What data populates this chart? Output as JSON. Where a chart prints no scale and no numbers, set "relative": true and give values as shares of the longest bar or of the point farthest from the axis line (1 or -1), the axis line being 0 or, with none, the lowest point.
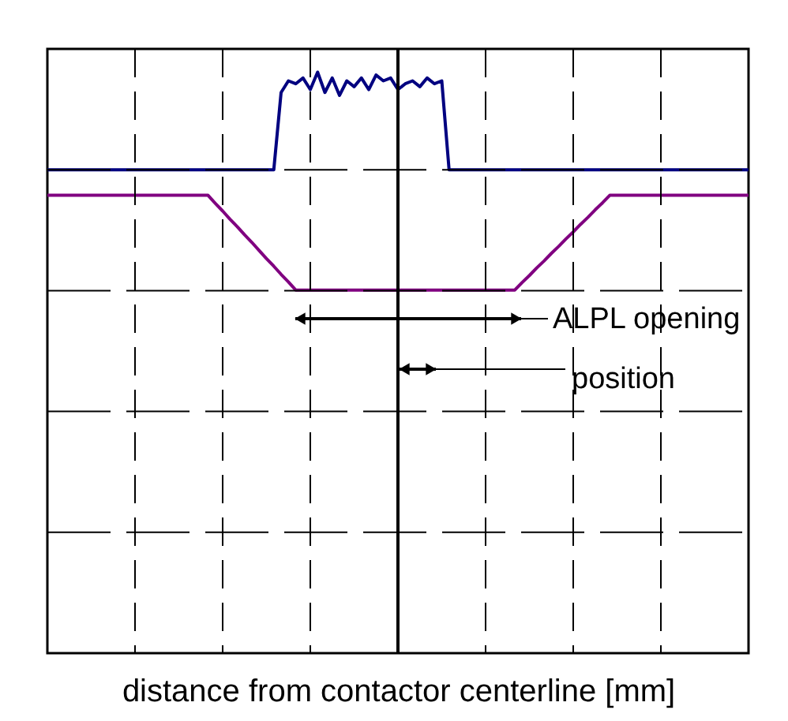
{
  "chart_data": {
    "type": "line",
    "relative": true,
    "xlabel": "distance from contactor centerline [mm]",
    "grid": true,
    "legend": false,
    "marker": "none",
    "line_style": "solid",
    "categories": [
      null,
      null,
      null,
      null,
      null,
      null,
      null,
      null,
      null,
      null,
      null,
      null,
      null,
      null,
      null,
      null,
      null,
      null,
      null,
      null,
      null,
      null,
      null,
      null,
      null,
      null,
      null,
      null,
      null,
      null,
      null,
      null,
      null,
      null,
      null,
      null,
      null,
      null,
      null,
      null,
      null,
      null,
      null,
      null,
      null,
      null,
      null,
      null,
      null,
      null,
      null,
      null,
      null,
      null,
      null,
      null,
      null,
      null,
      null,
      null,
      null,
      null,
      null,
      null,
      null,
      null,
      null,
      null,
      null,
      null,
      null,
      null,
      null,
      null,
      null,
      null,
      null,
      null,
      null,
      null,
      null,
      null,
      null,
      null,
      null,
      null,
      null,
      null,
      null,
      null,
      null,
      null,
      null,
      null,
      null,
      null,
      null
    ],
    "series": [
      {
        "color": "#000080",
        "values": [
          0.832,
          0.832,
          0.832,
          0.832,
          0.832,
          0.832,
          0.832,
          0.832,
          0.832,
          0.832,
          0.832,
          0.832,
          0.832,
          0.832,
          0.832,
          0.832,
          0.832,
          0.832,
          0.832,
          0.832,
          0.832,
          0.832,
          0.832,
          0.832,
          0.832,
          0.832,
          0.832,
          0.832,
          0.832,
          0.832,
          0.832,
          0.832,
          0.965,
          0.985,
          0.98,
          0.99,
          0.97,
          1,
          0.965,
          0.99,
          0.96,
          0.985,
          0.975,
          0.99,
          0.97,
          0.995,
          0.985,
          0.99,
          0.97,
          0.98,
          0.985,
          0.975,
          0.99,
          0.98,
          0.985,
          0.832,
          0.832,
          0.832,
          0.832,
          0.832,
          0.832,
          0.832,
          0.832,
          0.832,
          0.832,
          0.832,
          0.832,
          0.832,
          0.832,
          0.832,
          0.832,
          0.832,
          0.832,
          0.832,
          0.832,
          0.832,
          0.832,
          0.832,
          0.832,
          0.832,
          0.832,
          0.832,
          0.832,
          0.832,
          0.832,
          0.832,
          0.832,
          0.832,
          0.832,
          0.832,
          0.832,
          0.832,
          0.832,
          0.832,
          0.832,
          0.832,
          0.832
        ]
      },
      {
        "color": "#800080",
        "values": [
          0.788,
          0.788,
          0.788,
          0.788,
          0.788,
          0.788,
          0.788,
          0.788,
          0.788,
          0.788,
          0.788,
          0.788,
          0.788,
          0.788,
          0.788,
          0.788,
          0.788,
          0.788,
          0.788,
          0.788,
          0.788,
          0.788,
          0.788,
          0.774,
          0.761,
          0.747,
          0.734,
          0.72,
          0.707,
          0.693,
          0.679,
          0.666,
          0.652,
          0.639,
          0.625,
          0.625,
          0.625,
          0.625,
          0.625,
          0.625,
          0.625,
          0.625,
          0.625,
          0.625,
          0.625,
          0.625,
          0.625,
          0.625,
          0.625,
          0.625,
          0.625,
          0.625,
          0.625,
          0.625,
          0.625,
          0.625,
          0.625,
          0.625,
          0.625,
          0.625,
          0.625,
          0.625,
          0.625,
          0.625,
          0.625,
          0.638,
          0.65,
          0.663,
          0.675,
          0.688,
          0.7,
          0.713,
          0.725,
          0.738,
          0.75,
          0.763,
          0.775,
          0.788,
          0.788,
          0.788,
          0.788,
          0.788,
          0.788,
          0.788,
          0.788,
          0.788,
          0.788,
          0.788,
          0.788,
          0.788,
          0.788,
          0.788,
          0.788,
          0.788,
          0.788,
          0.788,
          0.788
        ]
      }
    ],
    "annotations": [
      "ALPL opening",
      "position"
    ]
  }
}
